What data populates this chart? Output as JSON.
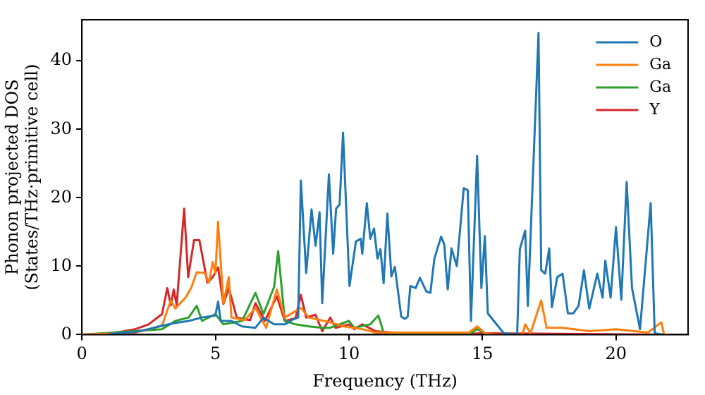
{
  "chart_data": {
    "type": "line",
    "xlabel": "Frequency (THz)",
    "ylabel": "Phonon projected DOS\n(States/THz·primitive cell)",
    "xlim": [
      0,
      22.7
    ],
    "xticks": [
      0,
      5,
      10,
      15,
      20
    ],
    "ylim": [
      0,
      46
    ],
    "yticks": [
      0,
      10,
      20,
      30,
      40
    ],
    "grid": false,
    "legend": "top right",
    "marker": "none",
    "line_style": "solid",
    "series": [
      {
        "name": "O",
        "color": "#1f77b4",
        "x": [
          1,
          2,
          2.5,
          3,
          3.5,
          4,
          4.5,
          5,
          5.1,
          5.2,
          5.6,
          6,
          6.5,
          6.8,
          7.2,
          7.6,
          7.9,
          8.1,
          8.2,
          8.4,
          8.6,
          8.75,
          8.9,
          9.0,
          9.25,
          9.41,
          9.52,
          9.65,
          9.78,
          10.02,
          10.26,
          10.44,
          10.5,
          10.67,
          10.8,
          10.94,
          11.07,
          11.18,
          11.3,
          11.44,
          11.59,
          11.72,
          11.96,
          12.1,
          12.2,
          12.3,
          12.5,
          12.66,
          12.9,
          13.05,
          13.2,
          13.45,
          13.57,
          13.7,
          13.84,
          14.04,
          14.3,
          14.45,
          14.57,
          14.8,
          14.96,
          15.09,
          15.2,
          15.8,
          16.3,
          16.4,
          16.6,
          16.7,
          17.1,
          17.2,
          17.35,
          17.5,
          17.6,
          17.8,
          18.0,
          18.2,
          18.4,
          18.6,
          18.8,
          19.0,
          19.3,
          19.5,
          19.6,
          19.8,
          20.0,
          20.2,
          20.4,
          20.6,
          20.9,
          21.3,
          21.45,
          21.8
        ],
        "values": [
          0.1,
          0.4,
          0.8,
          1.3,
          1.7,
          2.0,
          2.5,
          2.8,
          4.8,
          2.0,
          2.0,
          1.2,
          1.0,
          2.5,
          1.5,
          1.5,
          2.2,
          2.5,
          22.5,
          9,
          18.3,
          13,
          17.9,
          4.6,
          23.4,
          11.8,
          18.4,
          19,
          29.5,
          7.1,
          13.6,
          14,
          11.8,
          19.2,
          14,
          15.5,
          11.1,
          12.5,
          7.5,
          17.7,
          8.5,
          9.9,
          2.6,
          2.3,
          2.6,
          7.1,
          6.8,
          8.3,
          6.3,
          6.1,
          11.1,
          14.3,
          13.2,
          6.6,
          12.6,
          10,
          21.4,
          21.1,
          2,
          26.1,
          6.8,
          14.4,
          3.1,
          0.2,
          0,
          12.5,
          15.2,
          4.2,
          44.1,
          9.4,
          8.9,
          12.6,
          4,
          8.4,
          8.9,
          3.1,
          3.1,
          4.2,
          9.4,
          3.8,
          8.9,
          5.4,
          10.8,
          5.4,
          15.7,
          5.1,
          22.3,
          6.8,
          0.8,
          19.2,
          0.2,
          0
        ]
      },
      {
        "name": "Ga",
        "color": "#ff7f0e",
        "x": [
          0,
          2,
          3,
          3.33,
          3.5,
          3.9,
          4.1,
          4.3,
          4.6,
          4.76,
          4.9,
          5.0,
          5.1,
          5.3,
          5.5,
          5.6,
          6.1,
          6.5,
          6.9,
          7.3,
          7.6,
          8.2,
          8.5,
          9.3,
          9.8,
          10.5,
          11,
          14.5,
          14.8,
          15.1,
          15.5,
          16.5,
          16.6,
          16.8,
          17.2,
          17.4,
          18,
          19,
          20,
          21.2,
          21.7,
          21.8
        ],
        "values": [
          0,
          0.3,
          1.3,
          5,
          3.8,
          5.5,
          6.9,
          9.1,
          9,
          7.6,
          10.6,
          9,
          16.5,
          4.6,
          8.4,
          2.5,
          2.1,
          3.9,
          1,
          6.6,
          2.5,
          3.9,
          2.5,
          1.8,
          1.2,
          0.8,
          0.3,
          0.3,
          1.2,
          0.2,
          0,
          0,
          1.5,
          0.2,
          5,
          1,
          1,
          0.5,
          0.8,
          0.3,
          1.8,
          0
        ]
      },
      {
        "name": "Ga",
        "color": "#2ca02c",
        "x": [
          0,
          3,
          3.5,
          4,
          4.3,
          4.5,
          5,
          5.3,
          6,
          6.5,
          6.8,
          7.2,
          7.35,
          7.6,
          8,
          8.5,
          9,
          9.3,
          10,
          10.2,
          10.8,
          11.1,
          11.3,
          12,
          14.5,
          14.8,
          15.2
        ],
        "values": [
          0,
          0.8,
          2,
          2.5,
          4.2,
          2,
          3,
          1.5,
          2,
          6.1,
          3,
          7,
          12.2,
          2,
          1.5,
          1.2,
          1,
          1,
          2,
          1,
          1.5,
          2.8,
          0.3,
          0.1,
          0.1,
          0.8,
          0
        ]
      },
      {
        "name": "Y",
        "color": "#d62728",
        "x": [
          0,
          1,
          2,
          2.5,
          3,
          3.2,
          3.33,
          3.44,
          3.55,
          3.83,
          3.98,
          4.2,
          4.4,
          4.7,
          4.9,
          5.1,
          5.3,
          5.5,
          5.8,
          6.3,
          6.5,
          6.85,
          7.3,
          7.6,
          8.0,
          8.2,
          8.4,
          8.75,
          9.0,
          9.3,
          9.5,
          10,
          10.2,
          10.5,
          11,
          12,
          14,
          15,
          22
        ],
        "values": [
          0,
          0.1,
          0.8,
          1.5,
          3,
          6.8,
          4.3,
          6.6,
          4.3,
          18.4,
          8.4,
          13.8,
          13.8,
          7.6,
          8.4,
          9.8,
          4.5,
          6.8,
          2.5,
          2.1,
          4.6,
          2,
          5.6,
          2,
          2.4,
          5.8,
          2.5,
          2.9,
          0.5,
          2.5,
          1,
          1.5,
          0.8,
          1.5,
          0.5,
          0.2,
          0.1,
          0.2,
          0
        ]
      }
    ]
  }
}
